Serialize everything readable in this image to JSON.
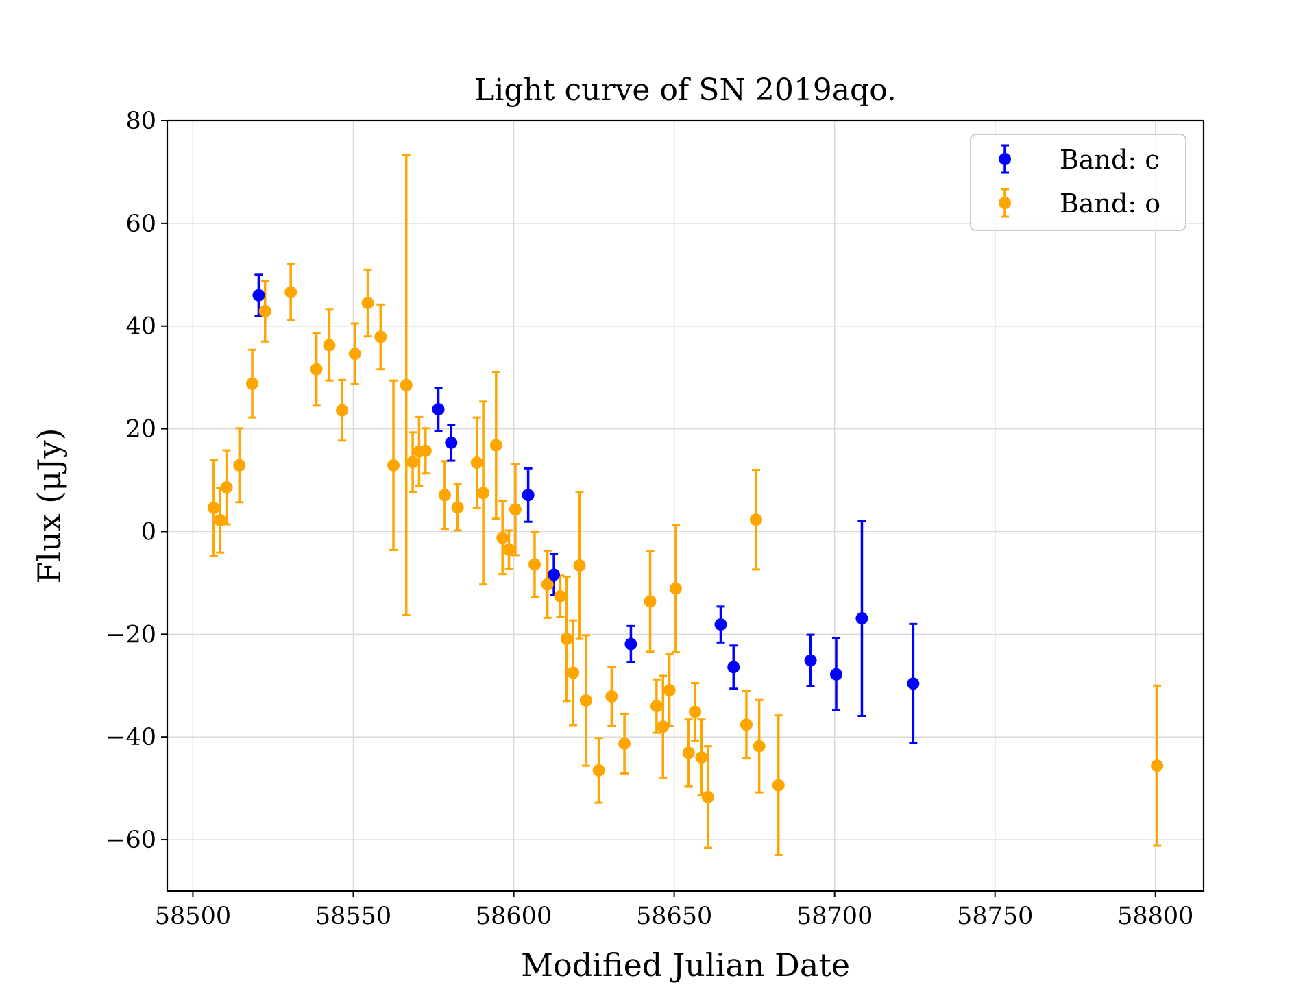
{
  "chart_data": {
    "type": "scatter",
    "title": "Light curve of SN 2019aqo.",
    "xlabel": "Modified Julian Date",
    "ylabel": "Flux (μJy)",
    "xlim": [
      58492,
      58815
    ],
    "ylim": [
      -70,
      80
    ],
    "xticks": [
      58500,
      58550,
      58600,
      58650,
      58700,
      58750,
      58800
    ],
    "yticks": [
      80,
      60,
      40,
      20,
      0,
      -20,
      -40,
      -60
    ],
    "grid": true,
    "legend_position": "top-right",
    "series": [
      {
        "name": "Band: c",
        "color": "#0000ff",
        "points": [
          [
            58520.5,
            46.0,
            4.0
          ],
          [
            58576.5,
            23.8,
            4.2
          ],
          [
            58580.5,
            17.3,
            3.5
          ],
          [
            58604.5,
            7.1,
            5.2
          ],
          [
            58612.5,
            -8.4,
            4.0
          ],
          [
            58636.5,
            -21.9,
            3.5
          ],
          [
            58664.5,
            -18.1,
            3.5
          ],
          [
            58668.5,
            -26.4,
            4.2
          ],
          [
            58692.5,
            -25.1,
            5.0
          ],
          [
            58700.5,
            -27.8,
            7.0
          ],
          [
            58708.5,
            -16.9,
            19.0
          ],
          [
            58724.5,
            -29.6,
            11.6
          ]
        ]
      },
      {
        "name": "Band: o",
        "color": "#ffa500",
        "points": [
          [
            58506.5,
            4.6,
            9.3
          ],
          [
            58508.5,
            2.2,
            6.3
          ],
          [
            58510.5,
            8.6,
            7.2
          ],
          [
            58514.5,
            12.9,
            7.2
          ],
          [
            58518.5,
            28.8,
            6.6
          ],
          [
            58522.5,
            42.9,
            5.9
          ],
          [
            58530.5,
            46.6,
            5.5
          ],
          [
            58538.5,
            31.6,
            7.1
          ],
          [
            58542.5,
            36.3,
            6.9
          ],
          [
            58546.5,
            23.6,
            5.9
          ],
          [
            58550.5,
            34.6,
            5.9
          ],
          [
            58554.5,
            44.5,
            6.5
          ],
          [
            58558.5,
            37.9,
            6.3
          ],
          [
            58562.5,
            12.9,
            16.5
          ],
          [
            58566.5,
            28.5,
            44.8
          ],
          [
            58568.5,
            13.5,
            5.8
          ],
          [
            58570.5,
            15.6,
            6.7
          ],
          [
            58572.5,
            15.7,
            4.4
          ],
          [
            58578.5,
            7.1,
            6.6
          ],
          [
            58582.5,
            4.7,
            4.5
          ],
          [
            58588.5,
            13.4,
            8.8
          ],
          [
            58590.5,
            7.5,
            17.8
          ],
          [
            58594.5,
            16.8,
            14.3
          ],
          [
            58596.5,
            -1.2,
            7.1
          ],
          [
            58598.5,
            -3.5,
            3.7
          ],
          [
            58600.5,
            4.3,
            8.9
          ],
          [
            58606.5,
            -6.4,
            6.4
          ],
          [
            58610.5,
            -10.3,
            6.5
          ],
          [
            58614.5,
            -12.6,
            4.0
          ],
          [
            58616.5,
            -20.9,
            12.1
          ],
          [
            58618.5,
            -27.5,
            10.2
          ],
          [
            58620.5,
            -6.6,
            14.3
          ],
          [
            58622.5,
            -32.9,
            12.7
          ],
          [
            58626.5,
            -46.5,
            6.3
          ],
          [
            58630.5,
            -32.1,
            5.8
          ],
          [
            58634.5,
            -41.3,
            5.8
          ],
          [
            58642.5,
            -13.6,
            9.8
          ],
          [
            58644.5,
            -34.0,
            5.2
          ],
          [
            58646.5,
            -38.0,
            9.9
          ],
          [
            58648.5,
            -30.9,
            7.0
          ],
          [
            58650.5,
            -11.1,
            12.4
          ],
          [
            58654.5,
            -43.1,
            6.5
          ],
          [
            58656.5,
            -35.1,
            5.6
          ],
          [
            58658.5,
            -44.0,
            7.4
          ],
          [
            58660.5,
            -51.7,
            9.9
          ],
          [
            58672.5,
            -37.6,
            6.6
          ],
          [
            58675.5,
            2.3,
            9.7
          ],
          [
            58676.5,
            -41.8,
            9.0
          ],
          [
            58682.5,
            -49.4,
            13.6
          ],
          [
            58800.5,
            -45.6,
            15.6
          ]
        ]
      }
    ]
  }
}
